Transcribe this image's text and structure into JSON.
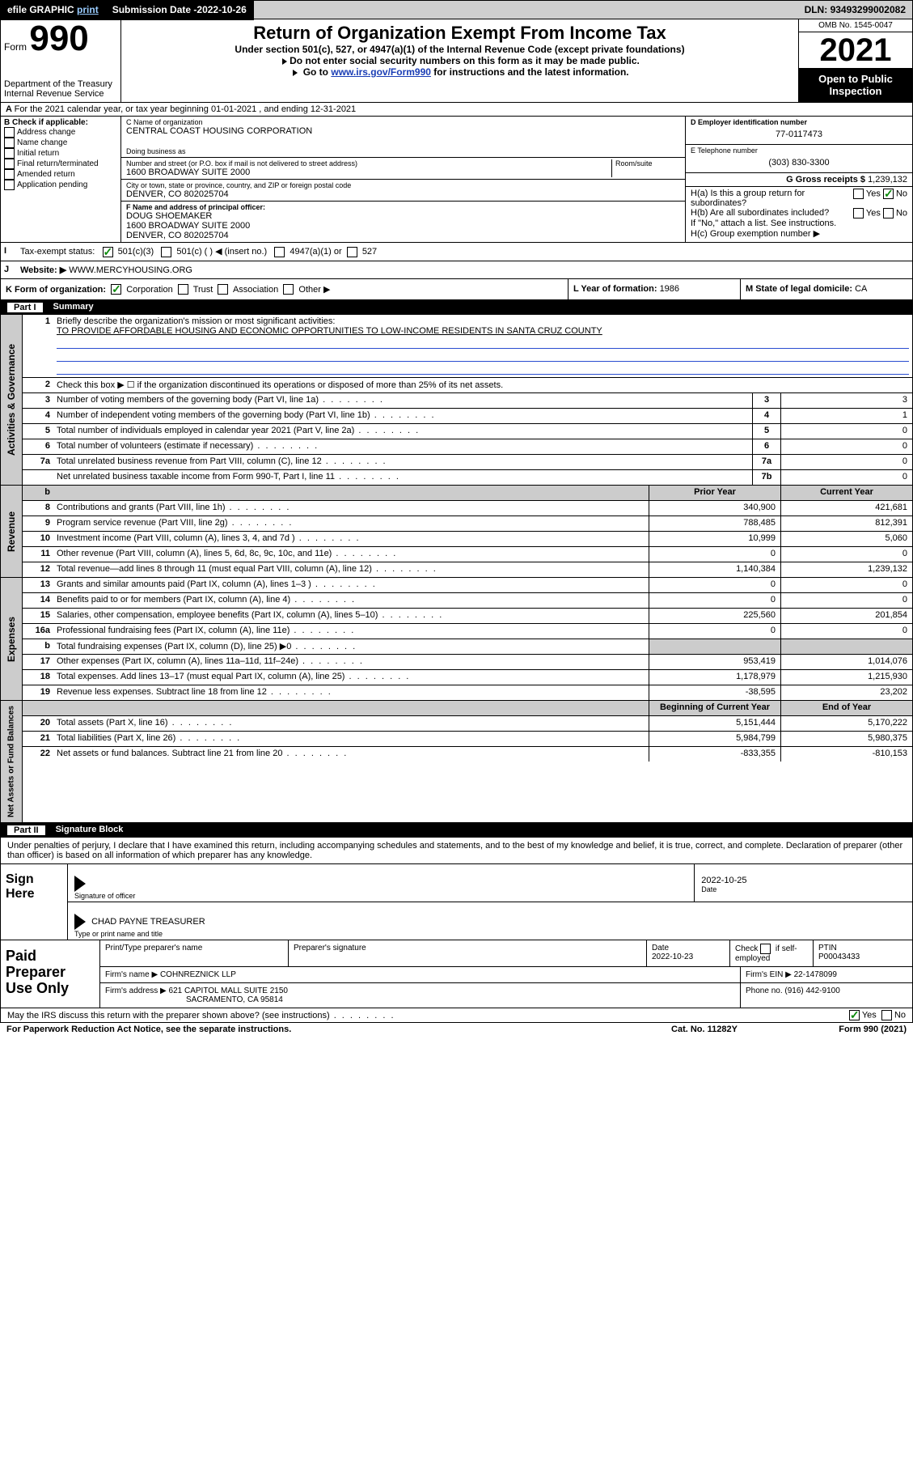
{
  "topbar": {
    "efile": "efile GRAPHIC",
    "print": "print",
    "subdate_label": "Submission Date - ",
    "subdate": "2022-10-26",
    "dln_label": "DLN: ",
    "dln": "93493299002082"
  },
  "header": {
    "form_label": "Form",
    "form_num": "990",
    "dept": "Department of the Treasury",
    "irs": "Internal Revenue Service",
    "title": "Return of Organization Exempt From Income Tax",
    "sub1": "Under section 501(c), 527, or 4947(a)(1) of the Internal Revenue Code (except private foundations)",
    "sub2": "Do not enter social security numbers on this form as it may be made public.",
    "sub3_pre": "Go to ",
    "sub3_link": "www.irs.gov/Form990",
    "sub3_post": " for instructions and the latest information.",
    "omb": "OMB No. 1545-0047",
    "year": "2021",
    "open": "Open to Public Inspection"
  },
  "line_a": "For the 2021 calendar year, or tax year beginning 01-01-2021   , and ending 12-31-2021",
  "col_b": {
    "label": "B Check if applicable:",
    "opts": [
      "Address change",
      "Name change",
      "Initial return",
      "Final return/terminated",
      "Amended return",
      "Application pending"
    ]
  },
  "col_c": {
    "name_label": "C Name of organization",
    "name": "CENTRAL COAST HOUSING CORPORATION",
    "dba_label": "Doing business as",
    "addr_label": "Number and street (or P.O. box if mail is not delivered to street address)",
    "room_label": "Room/suite",
    "addr": "1600 BROADWAY SUITE 2000",
    "city_label": "City or town, state or province, country, and ZIP or foreign postal code",
    "city": "DENVER, CO  802025704",
    "f_label": "F Name and address of principal officer:",
    "f_name": "DOUG SHOEMAKER",
    "f_addr": "1600 BROADWAY SUITE 2000",
    "f_city": "DENVER, CO  802025704"
  },
  "col_d": {
    "d_label": "D Employer identification number",
    "d_val": "77-0117473",
    "e_label": "E Telephone number",
    "e_val": "(303) 830-3300",
    "g_label": "G Gross receipts $ ",
    "g_val": "1,239,132",
    "ha_label": "H(a)  Is this a group return for subordinates?",
    "hb_label": "H(b)  Are all subordinates included?",
    "hb_note": "If \"No,\" attach a list. See instructions.",
    "hc_label": "H(c)  Group exemption number ▶",
    "yes": "Yes",
    "no": "No"
  },
  "row_i": {
    "label": "Tax-exempt status:",
    "o1": "501(c)(3)",
    "o2": "501(c) (  ) ◀ (insert no.)",
    "o3": "4947(a)(1) or",
    "o4": "527"
  },
  "row_j": {
    "label": "Website: ▶",
    "val": "WWW.MERCYHOUSING.ORG"
  },
  "row_k": {
    "left_label": "K Form of organization:",
    "o1": "Corporation",
    "o2": "Trust",
    "o3": "Association",
    "o4": "Other ▶",
    "l_label": "L Year of formation: ",
    "l_val": "1986",
    "m_label": "M State of legal domicile: ",
    "m_val": "CA"
  },
  "part1": {
    "num": "Part I",
    "title": "Summary",
    "l1a": "Briefly describe the organization's mission or most significant activities:",
    "l1b": "TO PROVIDE AFFORDABLE HOUSING AND ECONOMIC OPPORTUNITIES TO LOW-INCOME RESIDENTS IN SANTA CRUZ COUNTY",
    "l2": "Check this box ▶ ☐  if the organization discontinued its operations or disposed of more than 25% of its net assets.",
    "rows_ag": [
      {
        "n": "3",
        "d": "Number of voting members of the governing body (Part VI, line 1a)",
        "box": "3",
        "v": "3"
      },
      {
        "n": "4",
        "d": "Number of independent voting members of the governing body (Part VI, line 1b)",
        "box": "4",
        "v": "1"
      },
      {
        "n": "5",
        "d": "Total number of individuals employed in calendar year 2021 (Part V, line 2a)",
        "box": "5",
        "v": "0"
      },
      {
        "n": "6",
        "d": "Total number of volunteers (estimate if necessary)",
        "box": "6",
        "v": "0"
      },
      {
        "n": "7a",
        "d": "Total unrelated business revenue from Part VIII, column (C), line 12",
        "box": "7a",
        "v": "0"
      },
      {
        "n": "",
        "d": "Net unrelated business taxable income from Form 990-T, Part I, line 11",
        "box": "7b",
        "v": "0"
      }
    ],
    "col_headers": {
      "prior": "Prior Year",
      "curr": "Current Year"
    },
    "rev_label": "Revenue",
    "rev_rows": [
      {
        "n": "8",
        "d": "Contributions and grants (Part VIII, line 1h)",
        "p": "340,900",
        "c": "421,681"
      },
      {
        "n": "9",
        "d": "Program service revenue (Part VIII, line 2g)",
        "p": "788,485",
        "c": "812,391"
      },
      {
        "n": "10",
        "d": "Investment income (Part VIII, column (A), lines 3, 4, and 7d )",
        "p": "10,999",
        "c": "5,060"
      },
      {
        "n": "11",
        "d": "Other revenue (Part VIII, column (A), lines 5, 6d, 8c, 9c, 10c, and 11e)",
        "p": "0",
        "c": "0"
      },
      {
        "n": "12",
        "d": "Total revenue—add lines 8 through 11 (must equal Part VIII, column (A), line 12)",
        "p": "1,140,384",
        "c": "1,239,132"
      }
    ],
    "exp_label": "Expenses",
    "exp_rows": [
      {
        "n": "13",
        "d": "Grants and similar amounts paid (Part IX, column (A), lines 1–3 )",
        "p": "0",
        "c": "0"
      },
      {
        "n": "14",
        "d": "Benefits paid to or for members (Part IX, column (A), line 4)",
        "p": "0",
        "c": "0"
      },
      {
        "n": "15",
        "d": "Salaries, other compensation, employee benefits (Part IX, column (A), lines 5–10)",
        "p": "225,560",
        "c": "201,854"
      },
      {
        "n": "16a",
        "d": "Professional fundraising fees (Part IX, column (A), line 11e)",
        "p": "0",
        "c": "0"
      },
      {
        "n": "b",
        "d": "Total fundraising expenses (Part IX, column (D), line 25) ▶0",
        "p": "",
        "c": "",
        "shade": true
      },
      {
        "n": "17",
        "d": "Other expenses (Part IX, column (A), lines 11a–11d, 11f–24e)",
        "p": "953,419",
        "c": "1,014,076"
      },
      {
        "n": "18",
        "d": "Total expenses. Add lines 13–17 (must equal Part IX, column (A), line 25)",
        "p": "1,178,979",
        "c": "1,215,930"
      },
      {
        "n": "19",
        "d": "Revenue less expenses. Subtract line 18 from line 12",
        "p": "-38,595",
        "c": "23,202"
      }
    ],
    "na_label": "Net Assets or Fund Balances",
    "na_headers": {
      "b": "Beginning of Current Year",
      "e": "End of Year"
    },
    "na_rows": [
      {
        "n": "20",
        "d": "Total assets (Part X, line 16)",
        "p": "5,151,444",
        "c": "5,170,222"
      },
      {
        "n": "21",
        "d": "Total liabilities (Part X, line 26)",
        "p": "5,984,799",
        "c": "5,980,375"
      },
      {
        "n": "22",
        "d": "Net assets or fund balances. Subtract line 21 from line 20",
        "p": "-833,355",
        "c": "-810,153"
      }
    ],
    "ag_label": "Activities & Governance"
  },
  "part2": {
    "num": "Part II",
    "title": "Signature Block",
    "decl": "Under penalties of perjury, I declare that I have examined this return, including accompanying schedules and statements, and to the best of my knowledge and belief, it is true, correct, and complete. Declaration of preparer (other than officer) is based on all information of which preparer has any knowledge."
  },
  "sign": {
    "label": "Sign Here",
    "sig_of_officer": "Signature of officer",
    "date": "Date",
    "date_v": "2022-10-25",
    "name": "CHAD PAYNE  TREASURER",
    "name_label": "Type or print name and title"
  },
  "prep": {
    "label": "Paid Preparer Use Only",
    "h1": "Print/Type preparer's name",
    "h2": "Preparer's signature",
    "h3": "Date",
    "h3v": "2022-10-23",
    "h4a": "Check",
    "h4b": "if self-employed",
    "h5": "PTIN",
    "h5v": "P00043433",
    "firm_label": "Firm's name    ▶ ",
    "firm": "COHNREZNICK LLP",
    "ein_label": "Firm's EIN ▶ ",
    "ein": "22-1478099",
    "addr_label": "Firm's address ▶ ",
    "addr1": "621 CAPITOL MALL SUITE 2150",
    "addr2": "SACRAMENTO, CA  95814",
    "phone_label": "Phone no. ",
    "phone": "(916) 442-9100"
  },
  "footer": {
    "q": "May the IRS discuss this return with the preparer shown above? (see instructions)",
    "yes": "Yes",
    "no": "No",
    "pra": "For Paperwork Reduction Act Notice, see the separate instructions.",
    "cat": "Cat. No. 11282Y",
    "form": "Form 990 (2021)"
  }
}
